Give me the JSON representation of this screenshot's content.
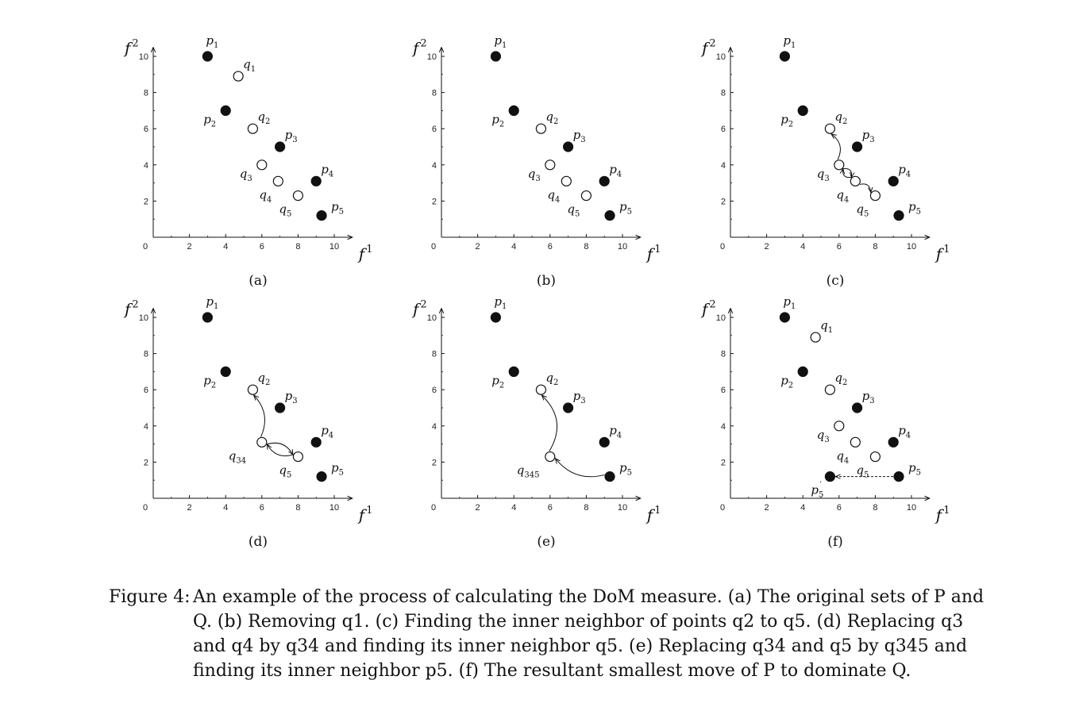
{
  "panels": [
    {
      "label": "(a)",
      "points": [
        {
          "name": "p",
          "sub": "1",
          "x": 3,
          "y": 10,
          "filled": true,
          "lab": "above"
        },
        {
          "name": "p",
          "sub": "2",
          "x": 4,
          "y": 7,
          "filled": true,
          "lab": "left"
        },
        {
          "name": "p",
          "sub": "3",
          "x": 7,
          "y": 5,
          "filled": true,
          "lab": "above-right"
        },
        {
          "name": "p",
          "sub": "4",
          "x": 9,
          "y": 3.1,
          "filled": true,
          "lab": "above-right"
        },
        {
          "name": "p",
          "sub": "5",
          "x": 9.3,
          "y": 1.2,
          "filled": true,
          "lab": "right"
        },
        {
          "name": "q",
          "sub": "1",
          "x": 4.7,
          "y": 8.9,
          "filled": false,
          "lab": "above-right"
        },
        {
          "name": "q",
          "sub": "2",
          "x": 5.5,
          "y": 6,
          "filled": false,
          "lab": "above-right"
        },
        {
          "name": "q",
          "sub": "3",
          "x": 6,
          "y": 4,
          "filled": false,
          "lab": "left"
        },
        {
          "name": "q",
          "sub": "4",
          "x": 6.9,
          "y": 3.1,
          "filled": false,
          "lab": "below-left"
        },
        {
          "name": "q",
          "sub": "5",
          "x": 8,
          "y": 2.3,
          "filled": false,
          "lab": "below-left"
        }
      ],
      "arrows": []
    },
    {
      "label": "(b)",
      "points": [
        {
          "name": "p",
          "sub": "1",
          "x": 3,
          "y": 10,
          "filled": true,
          "lab": "above"
        },
        {
          "name": "p",
          "sub": "2",
          "x": 4,
          "y": 7,
          "filled": true,
          "lab": "left"
        },
        {
          "name": "p",
          "sub": "3",
          "x": 7,
          "y": 5,
          "filled": true,
          "lab": "above-right"
        },
        {
          "name": "p",
          "sub": "4",
          "x": 9,
          "y": 3.1,
          "filled": true,
          "lab": "above-right"
        },
        {
          "name": "p",
          "sub": "5",
          "x": 9.3,
          "y": 1.2,
          "filled": true,
          "lab": "right"
        },
        {
          "name": "q",
          "sub": "2",
          "x": 5.5,
          "y": 6,
          "filled": false,
          "lab": "above-right"
        },
        {
          "name": "q",
          "sub": "3",
          "x": 6,
          "y": 4,
          "filled": false,
          "lab": "left"
        },
        {
          "name": "q",
          "sub": "4",
          "x": 6.9,
          "y": 3.1,
          "filled": false,
          "lab": "below-left"
        },
        {
          "name": "q",
          "sub": "5",
          "x": 8,
          "y": 2.3,
          "filled": false,
          "lab": "below-left"
        }
      ],
      "arrows": []
    },
    {
      "label": "(c)",
      "points": [
        {
          "name": "p",
          "sub": "1",
          "x": 3,
          "y": 10,
          "filled": true,
          "lab": "above"
        },
        {
          "name": "p",
          "sub": "2",
          "x": 4,
          "y": 7,
          "filled": true,
          "lab": "left"
        },
        {
          "name": "p",
          "sub": "3",
          "x": 7,
          "y": 5,
          "filled": true,
          "lab": "above-right"
        },
        {
          "name": "p",
          "sub": "4",
          "x": 9,
          "y": 3.1,
          "filled": true,
          "lab": "above-right"
        },
        {
          "name": "p",
          "sub": "5",
          "x": 9.3,
          "y": 1.2,
          "filled": true,
          "lab": "right"
        },
        {
          "name": "q",
          "sub": "2",
          "x": 5.5,
          "y": 6,
          "filled": false,
          "lab": "above-right"
        },
        {
          "name": "q",
          "sub": "3",
          "x": 6,
          "y": 4,
          "filled": false,
          "lab": "left"
        },
        {
          "name": "q",
          "sub": "4",
          "x": 6.9,
          "y": 3.1,
          "filled": false,
          "lab": "below-left"
        },
        {
          "name": "q",
          "sub": "5",
          "x": 8,
          "y": 2.3,
          "filled": false,
          "lab": "below-left"
        }
      ],
      "arrows": [
        {
          "from": [
            6,
            4
          ],
          "to": [
            5.5,
            6
          ],
          "bend": 14,
          "dashed": false
        },
        {
          "from": [
            6,
            4
          ],
          "to": [
            6.9,
            3.1
          ],
          "bend": -10,
          "dashed": false
        },
        {
          "from": [
            6.9,
            3.1
          ],
          "to": [
            6,
            4
          ],
          "bend": -10,
          "dashed": false
        },
        {
          "from": [
            6.9,
            3.1
          ],
          "to": [
            8,
            2.3
          ],
          "bend": -10,
          "dashed": false
        }
      ]
    },
    {
      "label": "(d)",
      "points": [
        {
          "name": "p",
          "sub": "1",
          "x": 3,
          "y": 10,
          "filled": true,
          "lab": "above"
        },
        {
          "name": "p",
          "sub": "2",
          "x": 4,
          "y": 7,
          "filled": true,
          "lab": "left"
        },
        {
          "name": "p",
          "sub": "3",
          "x": 7,
          "y": 5,
          "filled": true,
          "lab": "above-right"
        },
        {
          "name": "p",
          "sub": "4",
          "x": 9,
          "y": 3.1,
          "filled": true,
          "lab": "above-right"
        },
        {
          "name": "p",
          "sub": "5",
          "x": 9.3,
          "y": 1.2,
          "filled": true,
          "lab": "right"
        },
        {
          "name": "q",
          "sub": "2",
          "x": 5.5,
          "y": 6,
          "filled": false,
          "lab": "above-right"
        },
        {
          "name": "q",
          "sub": "34",
          "x": 6,
          "y": 3.1,
          "filled": false,
          "lab": "below-left-far"
        },
        {
          "name": "q",
          "sub": "5",
          "x": 8,
          "y": 2.3,
          "filled": false,
          "lab": "below-left"
        }
      ],
      "arrows": [
        {
          "from": [
            6,
            3.1
          ],
          "to": [
            5.5,
            6
          ],
          "bend": 16,
          "dashed": false
        },
        {
          "from": [
            6,
            3.1
          ],
          "to": [
            8,
            2.3
          ],
          "bend": -14,
          "dashed": false
        },
        {
          "from": [
            8,
            2.3
          ],
          "to": [
            6,
            3.1
          ],
          "bend": -14,
          "dashed": false
        }
      ]
    },
    {
      "label": "(e)",
      "points": [
        {
          "name": "p",
          "sub": "1",
          "x": 3,
          "y": 10,
          "filled": true,
          "lab": "above"
        },
        {
          "name": "p",
          "sub": "2",
          "x": 4,
          "y": 7,
          "filled": true,
          "lab": "left"
        },
        {
          "name": "p",
          "sub": "3",
          "x": 7,
          "y": 5,
          "filled": true,
          "lab": "above-right"
        },
        {
          "name": "p",
          "sub": "4",
          "x": 9,
          "y": 3.1,
          "filled": true,
          "lab": "above-right"
        },
        {
          "name": "p",
          "sub": "5",
          "x": 9.3,
          "y": 1.2,
          "filled": true,
          "lab": "right"
        },
        {
          "name": "q",
          "sub": "2",
          "x": 5.5,
          "y": 6,
          "filled": false,
          "lab": "above-right"
        },
        {
          "name": "q",
          "sub": "345",
          "x": 6,
          "y": 2.3,
          "filled": false,
          "lab": "below-left-far"
        }
      ],
      "arrows": [
        {
          "from": [
            6,
            2.3
          ],
          "to": [
            5.5,
            6
          ],
          "bend": 20,
          "dashed": false
        },
        {
          "from": [
            9.3,
            1.2
          ],
          "to": [
            6,
            2.3
          ],
          "bend": -16,
          "dashed": false
        }
      ]
    },
    {
      "label": "(f)",
      "points": [
        {
          "name": "p",
          "sub": "1",
          "x": 3,
          "y": 10,
          "filled": true,
          "lab": "above"
        },
        {
          "name": "p",
          "sub": "2",
          "x": 4,
          "y": 7,
          "filled": true,
          "lab": "left"
        },
        {
          "name": "p",
          "sub": "3",
          "x": 7,
          "y": 5,
          "filled": true,
          "lab": "above-right"
        },
        {
          "name": "p",
          "sub": "4",
          "x": 9,
          "y": 3.1,
          "filled": true,
          "lab": "above-right"
        },
        {
          "name": "p",
          "sub": "5",
          "x": 9.3,
          "y": 1.2,
          "filled": true,
          "lab": "right"
        },
        {
          "name": "p",
          "sub": "5",
          "prime": true,
          "x": 5.5,
          "y": 1.2,
          "filled": true,
          "lab": "below-left"
        },
        {
          "name": "q",
          "sub": "1",
          "x": 4.7,
          "y": 8.9,
          "filled": false,
          "lab": "above-right"
        },
        {
          "name": "q",
          "sub": "2",
          "x": 5.5,
          "y": 6,
          "filled": false,
          "lab": "above-right"
        },
        {
          "name": "q",
          "sub": "3",
          "x": 6,
          "y": 4,
          "filled": false,
          "lab": "left"
        },
        {
          "name": "q",
          "sub": "4",
          "x": 6.9,
          "y": 3.1,
          "filled": false,
          "lab": "below-left"
        },
        {
          "name": "q",
          "sub": "5",
          "x": 8,
          "y": 2.3,
          "filled": false,
          "lab": "below-left"
        }
      ],
      "arrows": [
        {
          "from": [
            9.3,
            1.2
          ],
          "to": [
            5.5,
            1.2
          ],
          "bend": 0,
          "dashed": true
        }
      ]
    }
  ],
  "axes": {
    "x_ticks": [
      "0",
      "2",
      "4",
      "6",
      "8",
      "10"
    ],
    "y_ticks": [
      "2",
      "4",
      "6",
      "8",
      "10"
    ],
    "x_label": "f",
    "x_label_sup": "1",
    "y_label": "f",
    "y_label_sup": "2",
    "xlim": [
      0,
      11
    ],
    "ylim": [
      0,
      10.5
    ]
  },
  "caption": {
    "number": "Figure 4:",
    "text": "An example of the process of calculating the DoM measure. (a) The original sets of P and Q. (b) Removing q1. (c) Finding the inner neighbor of points q2 to q5. (d) Replacing q3 and q4 by q34 and finding its inner neighbor q5. (e) Replacing q34 and q5 by q345 and finding its inner neighbor p5. (f) The resultant smallest move of P to dominate Q."
  }
}
